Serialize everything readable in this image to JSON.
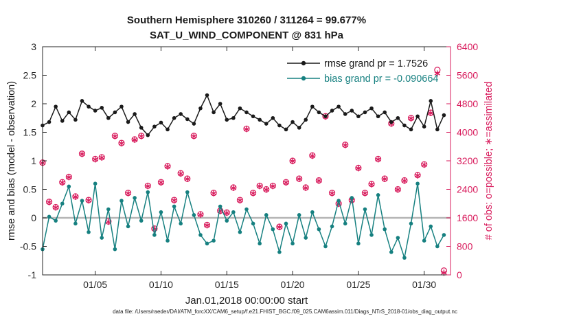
{
  "title": {
    "line1": "Southern Hemisphere 310260 / 311264 = 99.677%",
    "line2": "SAT_U_WIND_COMPONENT @ 831 hPa"
  },
  "footer": "data file: /Users/raeder/DAI/ATM_forcXX/CAM6_setup/f.e21.FHIST_BGC.f09_025.CAM6assim.011/Diags_NTrS_2018-01/obs_diag_output.nc",
  "colors": {
    "rmse": "#1a1a1a",
    "bias": "#168080",
    "obs": "#d81b5c",
    "zero_line": "#b5b5b5",
    "axis": "#262626"
  },
  "chart_data": {
    "type": "line",
    "title": "Southern Hemisphere 310260 / 311264 = 99.677% | SAT_U_WIND_COMPONENT @ 831 hPa",
    "xlabel": "Jan.01,2018 00:00:00 start",
    "ylabel_left": "rmse and bias (model - observation)",
    "ylabel_right": "# of obs: o=possible; ∗=assimilated",
    "xlim": [
      1,
      32
    ],
    "ylim_left": [
      -1,
      3
    ],
    "ylim_right": [
      0,
      6400
    ],
    "grid": false,
    "legend_position": "top-center-inside",
    "x_ticks": [
      {
        "value": 5,
        "label": "01/05"
      },
      {
        "value": 10,
        "label": "01/10"
      },
      {
        "value": 15,
        "label": "01/15"
      },
      {
        "value": 20,
        "label": "01/20"
      },
      {
        "value": 25,
        "label": "01/25"
      },
      {
        "value": 30,
        "label": "01/30"
      }
    ],
    "y_ticks_left": [
      3,
      2.5,
      2,
      1.5,
      1,
      0.5,
      0,
      -0.5,
      -1
    ],
    "y_ticks_right": [
      6400,
      5600,
      4800,
      4000,
      3200,
      2400,
      1600,
      800,
      0
    ],
    "legend": [
      {
        "label": "rmse grand pr = 1.7526",
        "series": "rmse",
        "value": 1.7526
      },
      {
        "label": "bias grand pr = -0.090664",
        "series": "bias",
        "value": -0.090664
      }
    ],
    "x": [
      1,
      1.5,
      2,
      2.5,
      3,
      3.5,
      4,
      4.5,
      5,
      5.5,
      6,
      6.5,
      7,
      7.5,
      8,
      8.5,
      9,
      9.5,
      10,
      10.5,
      11,
      11.5,
      12,
      12.5,
      13,
      13.5,
      14,
      14.5,
      15,
      15.5,
      16,
      16.5,
      17,
      17.5,
      18,
      18.5,
      19,
      19.5,
      20,
      20.5,
      21,
      21.5,
      22,
      22.5,
      23,
      23.5,
      24,
      24.5,
      25,
      25.5,
      26,
      26.5,
      27,
      27.5,
      28,
      28.5,
      29,
      29.5,
      30,
      30.5,
      31,
      31.5
    ],
    "series": [
      {
        "name": "rmse",
        "axis": "left",
        "marker": "dot",
        "values": [
          1.62,
          1.68,
          1.95,
          1.7,
          1.85,
          1.72,
          2.05,
          1.95,
          1.88,
          1.93,
          1.75,
          1.85,
          1.95,
          1.68,
          1.82,
          1.58,
          1.45,
          1.6,
          1.67,
          1.55,
          1.75,
          1.82,
          1.73,
          1.65,
          1.92,
          2.15,
          1.85,
          2.0,
          1.72,
          1.75,
          1.92,
          1.85,
          1.78,
          1.72,
          1.65,
          1.75,
          1.62,
          1.55,
          1.68,
          1.58,
          1.72,
          1.95,
          1.85,
          1.78,
          1.88,
          1.95,
          1.82,
          1.88,
          1.78,
          1.85,
          1.92,
          1.78,
          1.85,
          1.68,
          1.75,
          1.62,
          1.55,
          1.78,
          1.6,
          2.05,
          1.55,
          1.8
        ]
      },
      {
        "name": "bias",
        "axis": "left",
        "marker": "dot",
        "values": [
          -0.55,
          0.02,
          -0.05,
          0.25,
          0.55,
          -0.1,
          0.3,
          -0.25,
          0.6,
          -0.35,
          0.15,
          -0.55,
          0.3,
          -0.15,
          0.35,
          -0.05,
          0.45,
          -0.3,
          0.1,
          -0.4,
          0.2,
          -0.1,
          0.45,
          0.05,
          -0.3,
          -0.45,
          -0.4,
          0.2,
          -0.05,
          0.1,
          -0.25,
          0.15,
          -0.1,
          -0.45,
          0.05,
          -0.2,
          -0.6,
          -0.1,
          -0.45,
          0.05,
          -0.35,
          0.1,
          -0.2,
          -0.5,
          -0.15,
          0.3,
          -0.1,
          0.35,
          -0.45,
          0.15,
          -0.3,
          0.4,
          -0.2,
          -0.6,
          -0.35,
          -0.7,
          -0.1,
          0.6,
          -0.4,
          -0.15,
          -0.5,
          -0.3
        ]
      },
      {
        "name": "possible",
        "axis": "right",
        "marker": "circle",
        "values": [
          3150,
          2050,
          1900,
          2600,
          2750,
          2200,
          3400,
          2100,
          3250,
          3300,
          1500,
          3900,
          3700,
          2300,
          3800,
          3900,
          2500,
          1300,
          2600,
          3050,
          2100,
          2850,
          2700,
          3900,
          1700,
          1400,
          2300,
          1800,
          1750,
          2450,
          2100,
          4100,
          2300,
          2500,
          2400,
          2500,
          1350,
          2600,
          3200,
          2700,
          2450,
          3350,
          2650,
          4450,
          2300,
          2000,
          3650,
          2100,
          3000,
          2300,
          2550,
          3250,
          2700,
          4250,
          2400,
          2650,
          4400,
          2800,
          3100,
          4550,
          5750,
          120
        ]
      },
      {
        "name": "assimilated",
        "axis": "right",
        "marker": "asterisk",
        "values": [
          3140,
          2040,
          1890,
          2590,
          2740,
          2190,
          3390,
          2090,
          3240,
          3290,
          1490,
          3890,
          3690,
          2290,
          3790,
          3890,
          2490,
          1290,
          2590,
          3040,
          2090,
          2840,
          2690,
          3890,
          1690,
          1390,
          2290,
          1790,
          1740,
          2440,
          2090,
          4090,
          2290,
          2490,
          2390,
          2490,
          1340,
          2590,
          3190,
          2690,
          2440,
          3340,
          2640,
          4440,
          2290,
          1990,
          3640,
          2090,
          2990,
          2290,
          2540,
          3240,
          2690,
          4240,
          2390,
          2640,
          4390,
          2790,
          3090,
          4540,
          5650,
          60
        ]
      }
    ]
  }
}
